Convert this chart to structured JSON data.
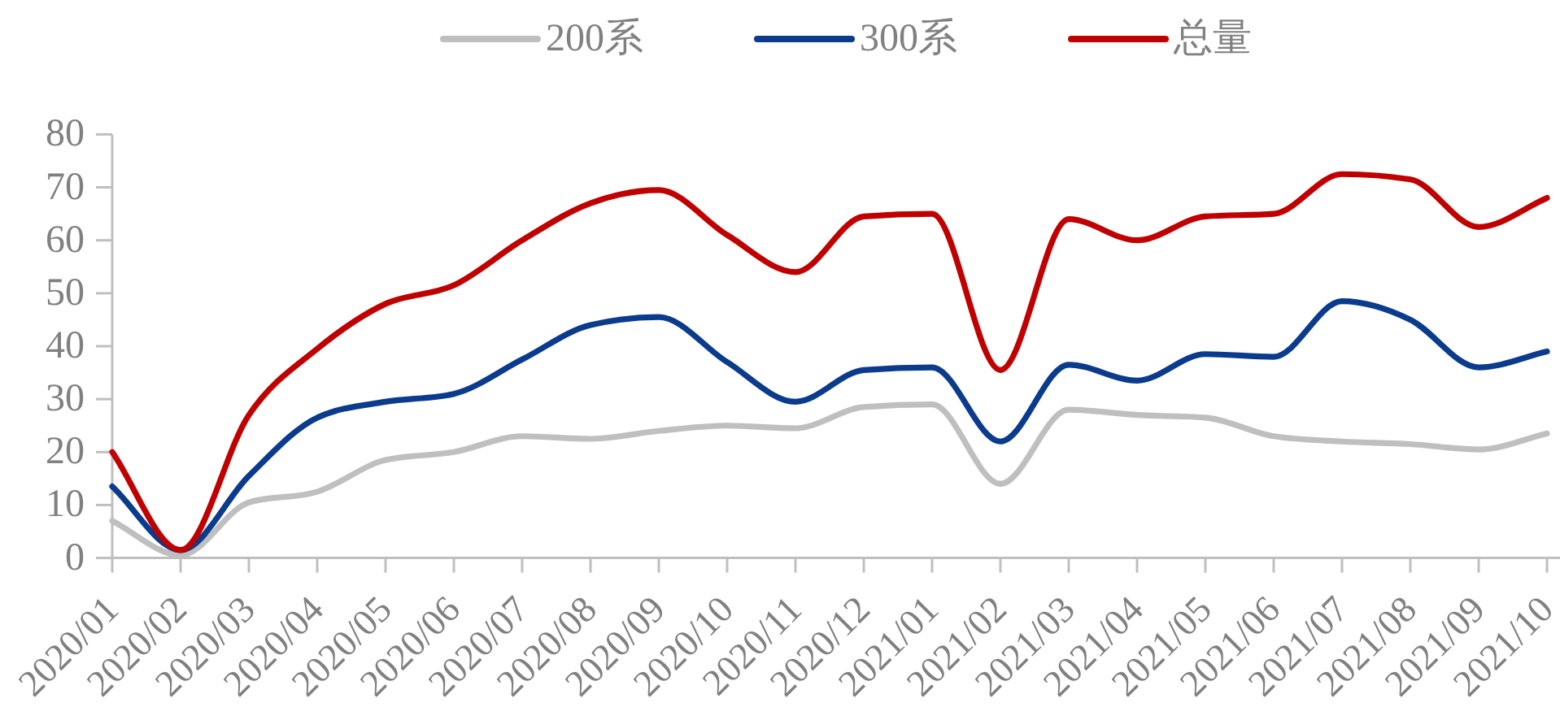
{
  "chart_data": {
    "type": "line",
    "categories": [
      "2020/01",
      "2020/02",
      "2020/03",
      "2020/04",
      "2020/05",
      "2020/06",
      "2020/07",
      "2020/08",
      "2020/09",
      "2020/10",
      "2020/11",
      "2020/12",
      "2021/01",
      "2021/02",
      "2021/03",
      "2021/04",
      "2021/05",
      "2021/06",
      "2021/07",
      "2021/08",
      "2021/09",
      "2021/10"
    ],
    "series": [
      {
        "name": "200系",
        "color": "#bfbfbf",
        "values": [
          7,
          0.5,
          10.5,
          12.5,
          18.5,
          20,
          23,
          22.5,
          24,
          25,
          24.5,
          28.5,
          29,
          14,
          28,
          27,
          26.5,
          23,
          22,
          21.5,
          20.5,
          23.5
        ]
      },
      {
        "name": "300系",
        "color": "#0b3b8c",
        "values": [
          13.5,
          1.5,
          15.5,
          26.5,
          29.5,
          31,
          37.5,
          44,
          45.5,
          37,
          29.5,
          35.5,
          36,
          22,
          36.5,
          33.5,
          38.5,
          38,
          48.5,
          45,
          36,
          39
        ]
      },
      {
        "name": "总量",
        "color": "#c00000",
        "values": [
          20,
          1.5,
          27,
          39.5,
          48,
          51.5,
          60,
          67,
          69.5,
          61,
          54,
          64.5,
          65,
          35.5,
          64,
          60,
          64.5,
          65,
          72.5,
          71.5,
          62.5,
          68
        ]
      }
    ],
    "ylim": [
      0,
      80
    ],
    "yticks": [
      0,
      10,
      20,
      30,
      40,
      50,
      60,
      70,
      80
    ],
    "legend": "top"
  }
}
